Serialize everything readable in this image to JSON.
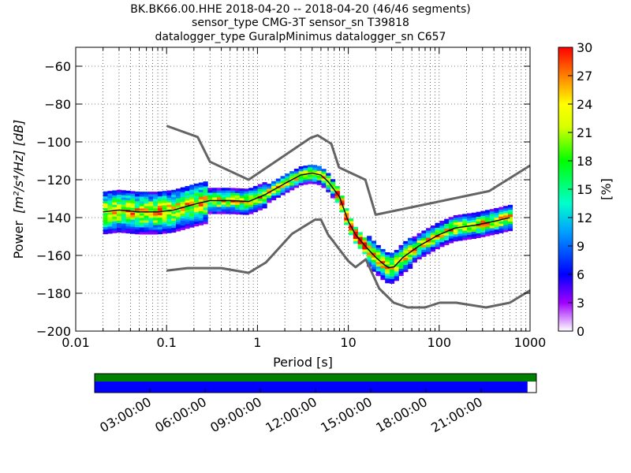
{
  "title_lines": [
    "BK.BK66.00.HHE   2018-04-20 -- 2018-04-20  (46/46 segments)",
    "sensor_type CMG-3T sensor_sn T39818",
    "datalogger_type GuralpMinimus datalogger_sn C657"
  ],
  "chart_data": {
    "type": "heatmap",
    "xlabel": "Period [s]",
    "ylabel_prefix": "Power",
    "ylabel_units": "[m²/s⁴/Hz] [dB]",
    "x_scale": "log",
    "xlim": [
      0.01,
      1000
    ],
    "ylim": [
      -200,
      -50
    ],
    "x_ticks": [
      0.01,
      0.1,
      1,
      10,
      100,
      1000
    ],
    "x_tick_labels": [
      "0.01",
      "0.1",
      "1",
      "10",
      "100",
      "1000"
    ],
    "y_ticks": [
      -200,
      -180,
      -160,
      -140,
      -120,
      -100,
      -80,
      -60
    ],
    "y_tick_labels": [
      "−200",
      "−180",
      "−160",
      "−140",
      "−120",
      "−100",
      "−80",
      "−60"
    ],
    "grid": true,
    "colorbar": {
      "label": "[%]",
      "range": [
        0,
        30
      ],
      "ticks": [
        0,
        3,
        6,
        9,
        12,
        15,
        18,
        21,
        24,
        27,
        30
      ]
    },
    "noise_model_high": {
      "name": "",
      "x": [
        0.1,
        0.22,
        0.3,
        0.8,
        3.8,
        4.6,
        6.5,
        7.9,
        15.4,
        20,
        354.8,
        1000
      ],
      "y": [
        -91.5,
        -97.4,
        -110.5,
        -120,
        -98,
        -96.5,
        -101,
        -113.5,
        -120,
        -138.5,
        -126,
        -112.5
      ]
    },
    "noise_model_low": {
      "name": "",
      "x": [
        0.1,
        0.17,
        0.4,
        0.8,
        1.24,
        2.4,
        4.3,
        5,
        6,
        10,
        12,
        15.6,
        21.9,
        31.6,
        45,
        70,
        101,
        154,
        328,
        600,
        1000
      ],
      "y": [
        -168,
        -166.7,
        -166.7,
        -169.2,
        -163.7,
        -148.6,
        -141.1,
        -141.1,
        -149,
        -163,
        -166.2,
        -162.1,
        -177.5,
        -185,
        -187.5,
        -187.5,
        -185,
        -185,
        -187.5,
        -185,
        -178.5
      ]
    },
    "median": {
      "name": "",
      "x": [
        0.02,
        0.03,
        0.05,
        0.08,
        0.12,
        0.2,
        0.3,
        0.5,
        0.8,
        1.2,
        2,
        3,
        4,
        5,
        6,
        8,
        10,
        12,
        16,
        20,
        25,
        28,
        32,
        40,
        60,
        100,
        150,
        250,
        400,
        600
      ],
      "y": [
        -137,
        -136,
        -137,
        -137,
        -136,
        -133,
        -131,
        -131,
        -131.5,
        -128,
        -122,
        -117.5,
        -116.5,
        -117.5,
        -121,
        -129,
        -142,
        -149,
        -156,
        -161,
        -165,
        -166.5,
        -166,
        -161,
        -155,
        -149,
        -145.5,
        -144,
        -142,
        -140
      ]
    },
    "availability": {
      "time_ticks": [
        "03:00:00",
        "06:00:00",
        "09:00:00",
        "12:00:00",
        "15:00:00",
        "18:00:00",
        "21:00:00"
      ],
      "data_coverage": 0.98,
      "trace_color": "#0000ff",
      "segment_color": "#008000"
    },
    "model_line_color": "#646464",
    "median_color": "#000000"
  }
}
